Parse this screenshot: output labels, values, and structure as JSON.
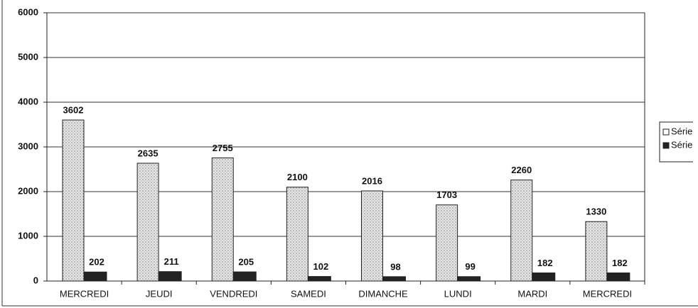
{
  "chart_data": {
    "type": "bar",
    "categories": [
      "MERCREDI",
      "JEUDI",
      "VENDREDI",
      "SAMEDI",
      "DIMANCHE",
      "LUNDI",
      "MARDI",
      "MERCREDI"
    ],
    "series": [
      {
        "name": "Série",
        "color": "#d4d4d4",
        "values": [
          3602,
          2635,
          2755,
          2100,
          2016,
          1703,
          2260,
          1330
        ]
      },
      {
        "name": "Série",
        "color": "#222222",
        "values": [
          202,
          211,
          205,
          102,
          98,
          99,
          182,
          182
        ]
      }
    ],
    "ylim": [
      0,
      6000
    ],
    "yticks": [
      0,
      1000,
      2000,
      3000,
      4000,
      5000,
      6000
    ],
    "grid": true
  }
}
